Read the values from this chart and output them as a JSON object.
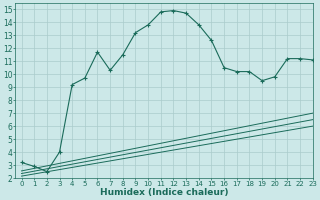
{
  "xlabel": "Humidex (Indice chaleur)",
  "bg_color": "#cce8e8",
  "grid_color": "#aacccc",
  "line_color": "#1a6b5a",
  "xlim": [
    -0.5,
    23
  ],
  "ylim": [
    2,
    15.5
  ],
  "xticks": [
    0,
    1,
    2,
    3,
    4,
    5,
    6,
    7,
    8,
    9,
    10,
    11,
    12,
    13,
    14,
    15,
    16,
    17,
    18,
    19,
    20,
    21,
    22,
    23
  ],
  "yticks": [
    2,
    3,
    4,
    5,
    6,
    7,
    8,
    9,
    10,
    11,
    12,
    13,
    14,
    15
  ],
  "curve1_x": [
    0,
    1,
    2,
    3,
    4,
    5,
    6,
    7,
    8,
    9,
    10,
    11,
    12,
    13,
    14,
    15,
    16,
    17,
    18,
    19,
    20,
    21,
    22,
    23
  ],
  "curve1_y": [
    3.2,
    2.9,
    2.5,
    4.0,
    9.2,
    9.7,
    11.7,
    10.3,
    11.5,
    13.2,
    13.8,
    14.8,
    14.9,
    14.7,
    13.8,
    12.6,
    10.5,
    10.2,
    10.2,
    9.5,
    9.8,
    11.2,
    11.2,
    11.1
  ],
  "line1_x": [
    0,
    23
  ],
  "line1_y": [
    2.55,
    7.0
  ],
  "line2_x": [
    0,
    23
  ],
  "line2_y": [
    2.35,
    6.5
  ],
  "line3_x": [
    0,
    23
  ],
  "line3_y": [
    2.15,
    6.0
  ]
}
